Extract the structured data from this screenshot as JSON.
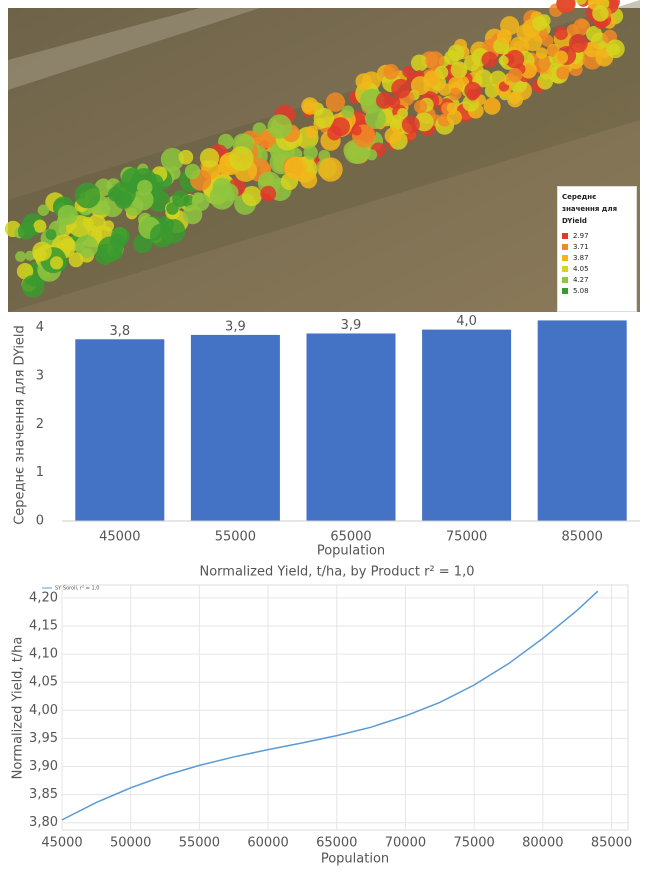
{
  "map": {
    "legend_title": "Середнє значення для DYield",
    "legend": [
      {
        "label": 2.97,
        "color": "#e0392b"
      },
      {
        "label": 3.71,
        "color": "#f08a24"
      },
      {
        "label": 3.87,
        "color": "#f2b61a"
      },
      {
        "label": 4.05,
        "color": "#d6d41e"
      },
      {
        "label": 4.27,
        "color": "#8dc63f"
      },
      {
        "label": 5.08,
        "color": "#3a9a2f"
      }
    ]
  },
  "chart_data": [
    {
      "type": "bar",
      "categories": [
        "45000",
        "55000",
        "65000",
        "75000",
        "85000"
      ],
      "values": [
        3.76,
        3.85,
        3.88,
        3.96,
        4.15
      ],
      "value_labels": [
        "3,8",
        "3,9",
        "3,9",
        "4,0",
        null
      ],
      "color": "#4472c4",
      "ylim": [
        0,
        4.2
      ],
      "yticks": [
        0,
        1,
        2,
        3,
        4
      ],
      "x_label": "Population",
      "y_label": "Середнє значення для DYield"
    },
    {
      "type": "line",
      "title": "Normalized Yield, t/ha, by Product r² = 1,0",
      "x": [
        45000,
        47500,
        50000,
        52500,
        55000,
        57500,
        60000,
        62500,
        65000,
        67500,
        70000,
        72500,
        75000,
        77500,
        80000,
        82500,
        84000
      ],
      "series": [
        {
          "name": "SY Soroll, r² = 1,0",
          "color": "#5b9bd5",
          "values": [
            3.805,
            3.836,
            3.862,
            3.884,
            3.902,
            3.917,
            3.93,
            3.942,
            3.955,
            3.97,
            3.99,
            4.014,
            4.045,
            4.083,
            4.128,
            4.178,
            4.212
          ]
        }
      ],
      "xlim": [
        45000,
        86200
      ],
      "xticks": [
        45000,
        50000,
        55000,
        60000,
        65000,
        70000,
        75000,
        80000,
        85000
      ],
      "ylim": [
        3.787,
        4.223
      ],
      "yticks": [
        {
          "value": 3.8,
          "label": "3,80"
        },
        {
          "value": 3.85,
          "label": "3,85"
        },
        {
          "value": 3.9,
          "label": "3,90"
        },
        {
          "value": 3.95,
          "label": "3,95"
        },
        {
          "value": 4.0,
          "label": "4,00"
        },
        {
          "value": 4.05,
          "label": "4,05"
        },
        {
          "value": 4.1,
          "label": "4,10"
        },
        {
          "value": 4.15,
          "label": "4,15"
        },
        {
          "value": 4.2,
          "label": "4,20"
        }
      ],
      "grid": true,
      "x_label": "Population",
      "y_label": "Normalized Yield, t/ha"
    }
  ]
}
